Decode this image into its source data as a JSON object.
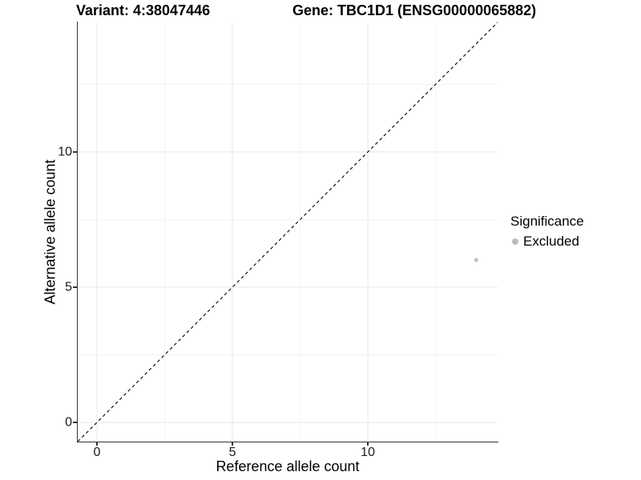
{
  "figure": {
    "titles": {
      "variant": "Variant: 4:38047446",
      "gene": "Gene: TBC1D1 (ENSG00000065882)"
    }
  },
  "chart_data": {
    "type": "scatter",
    "xlabel": "Reference allele count",
    "ylabel": "Alternative allele count",
    "xlim": [
      -0.71,
      14.79
    ],
    "ylim": [
      -0.71,
      14.79
    ],
    "xticks": [
      0,
      5,
      10
    ],
    "yticks": [
      0,
      5,
      10
    ],
    "minor_gridlines": [
      2.5,
      7.5,
      12.5
    ],
    "grid": "major+minor",
    "points": [
      {
        "x": 14,
        "y": 6,
        "significance": "Excluded"
      }
    ],
    "identity_line": {
      "slope": 1,
      "intercept": 0,
      "style": "dashed",
      "color": "#000000"
    },
    "legend": {
      "title": "Significance",
      "position": "right",
      "entries": [
        {
          "label": "Excluded",
          "color": "#bdbdbd"
        }
      ]
    },
    "colors": {
      "grid_major": "#e8e8e8",
      "grid_minor": "#f3f3f3",
      "axis": "#333333",
      "tick_label": "#1a1a1a"
    }
  }
}
